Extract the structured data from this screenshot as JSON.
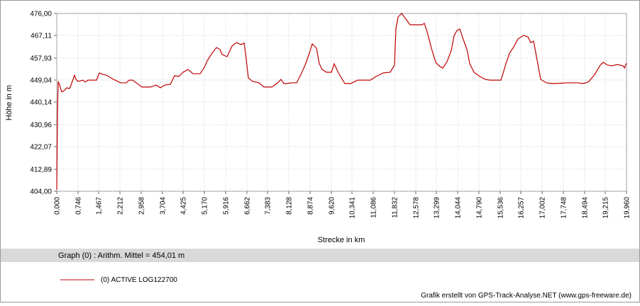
{
  "chart_data": {
    "type": "line",
    "y_label": "Höhe  in  m",
    "x_label": "Strecke  in  km",
    "statistic": "Graph (0) :  Arithm. Mittel = 454,01 m",
    "credit": "Grafik erstellt von GPS-Track-Analyse.NET (www.gps-freeware.de)",
    "grid": true,
    "xlim": [
      0,
      19.96
    ],
    "ylim": [
      404,
      476
    ],
    "yticks": [
      {
        "value": 404,
        "label": "404,00"
      },
      {
        "value": 412.89,
        "label": "412,89"
      },
      {
        "value": 422.07,
        "label": "422,07"
      },
      {
        "value": 430.96,
        "label": "430,96"
      },
      {
        "value": 440.14,
        "label": "440,14"
      },
      {
        "value": 449.04,
        "label": "449,04"
      },
      {
        "value": 457.93,
        "label": "457,93"
      },
      {
        "value": 467.11,
        "label": "467,11"
      },
      {
        "value": 476,
        "label": "476,00"
      }
    ],
    "xticks": [
      {
        "value": 0,
        "label": "0,000"
      },
      {
        "value": 0.746,
        "label": "0,746"
      },
      {
        "value": 1.467,
        "label": "1,467"
      },
      {
        "value": 2.212,
        "label": "2,212"
      },
      {
        "value": 2.958,
        "label": "2,958"
      },
      {
        "value": 3.704,
        "label": "3,704"
      },
      {
        "value": 4.425,
        "label": "4,425"
      },
      {
        "value": 5.17,
        "label": "5,170"
      },
      {
        "value": 5.916,
        "label": "5,916"
      },
      {
        "value": 6.662,
        "label": "6,662"
      },
      {
        "value": 7.383,
        "label": "7,383"
      },
      {
        "value": 8.128,
        "label": "8,128"
      },
      {
        "value": 8.874,
        "label": "8,874"
      },
      {
        "value": 9.62,
        "label": "9,620"
      },
      {
        "value": 10.341,
        "label": "10,341"
      },
      {
        "value": 11.086,
        "label": "11,086"
      },
      {
        "value": 11.832,
        "label": "11,832"
      },
      {
        "value": 12.578,
        "label": "12,578"
      },
      {
        "value": 13.299,
        "label": "13,299"
      },
      {
        "value": 14.044,
        "label": "14,044"
      },
      {
        "value": 14.79,
        "label": "14,790"
      },
      {
        "value": 15.536,
        "label": "15,536"
      },
      {
        "value": 16.257,
        "label": "16,257"
      },
      {
        "value": 17.002,
        "label": "17,002"
      },
      {
        "value": 17.748,
        "label": "17,748"
      },
      {
        "value": 18.494,
        "label": "18,494"
      },
      {
        "value": 19.215,
        "label": "19,215"
      },
      {
        "value": 19.96,
        "label": "19,960"
      }
    ],
    "x": [
      0,
      0.025,
      0.05,
      0.099,
      0.174,
      0.249,
      0.348,
      0.447,
      0.497,
      0.572,
      0.622,
      0.671,
      0.746,
      0.82,
      0.92,
      0.994,
      1.094,
      1.243,
      1.392,
      1.492,
      1.616,
      1.74,
      1.989,
      2.237,
      2.436,
      2.536,
      2.66,
      2.784,
      2.983,
      3.281,
      3.48,
      3.63,
      3.779,
      3.978,
      4.127,
      4.276,
      4.425,
      4.599,
      4.773,
      5.022,
      5.171,
      5.27,
      5.419,
      5.594,
      5.718,
      5.792,
      5.966,
      6.14,
      6.29,
      6.464,
      6.563,
      6.613,
      6.712,
      6.861,
      7.085,
      7.259,
      7.533,
      7.707,
      7.856,
      7.955,
      8.055,
      8.204,
      8.403,
      8.552,
      8.701,
      8.85,
      8.95,
      9.099,
      9.198,
      9.298,
      9.447,
      9.621,
      9.72,
      9.869,
      10.093,
      10.292,
      10.541,
      10.988,
      11.187,
      11.436,
      11.684,
      11.833,
      11.883,
      11.957,
      12.082,
      12.231,
      12.38,
      12.803,
      12.877,
      12.977,
      13.126,
      13.275,
      13.424,
      13.524,
      13.673,
      13.822,
      13.922,
      14.021,
      14.121,
      14.22,
      14.369,
      14.469,
      14.618,
      14.817,
      15.015,
      15.165,
      15.563,
      15.712,
      15.861,
      16.009,
      16.159,
      16.358,
      16.507,
      16.606,
      16.706,
      16.805,
      16.954,
      17.153,
      17.402,
      17.899,
      18.272,
      18.396,
      18.546,
      18.645,
      18.844,
      19.043,
      19.142,
      19.291,
      19.441,
      19.64,
      19.839,
      19.888,
      19.96
    ],
    "series": [
      {
        "name": "(0) ACTIVE LOG122700",
        "color": "#c00000",
        "values": [
          404.6,
          435.5,
          448.5,
          447.0,
          444.2,
          444.7,
          445.9,
          445.6,
          447.0,
          449.3,
          451.0,
          449.3,
          448.5,
          448.7,
          449.0,
          448.2,
          449.0,
          449.0,
          449.0,
          451.9,
          451.3,
          451.0,
          449.3,
          447.9,
          447.9,
          449.0,
          449.0,
          447.9,
          446.2,
          446.2,
          447.0,
          445.9,
          447.0,
          447.3,
          450.8,
          450.5,
          452.2,
          453.3,
          451.6,
          451.6,
          454.2,
          456.8,
          459.6,
          462.2,
          461.4,
          459.4,
          458.5,
          462.8,
          464.2,
          463.4,
          464.0,
          459.9,
          449.9,
          448.5,
          447.9,
          446.2,
          446.2,
          447.6,
          449.3,
          447.6,
          447.6,
          447.9,
          447.9,
          451.3,
          455.1,
          459.9,
          463.7,
          461.9,
          455.6,
          453.3,
          452.2,
          452.2,
          455.6,
          451.9,
          447.6,
          447.6,
          449.0,
          449.0,
          450.5,
          451.9,
          452.2,
          455.1,
          470.0,
          474.6,
          476.0,
          473.7,
          471.4,
          471.4,
          472.0,
          468.5,
          461.9,
          456.2,
          454.5,
          453.9,
          456.5,
          461.1,
          467.1,
          469.1,
          469.7,
          466.2,
          461.4,
          455.6,
          452.2,
          450.5,
          449.3,
          449.0,
          449.0,
          454.8,
          459.9,
          462.5,
          465.7,
          467.1,
          466.5,
          464.2,
          464.8,
          458.5,
          449.3,
          447.9,
          447.6,
          447.9,
          447.9,
          447.6,
          447.9,
          448.5,
          451.3,
          455.1,
          456.2,
          455.1,
          454.8,
          455.3,
          454.8,
          453.9,
          455.9
        ]
      }
    ]
  }
}
